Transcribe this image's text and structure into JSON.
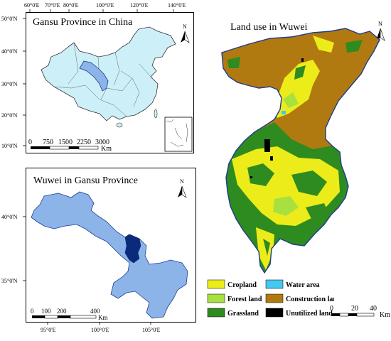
{
  "china_panel": {
    "title": "Gansu Province in China",
    "lon_ticks": [
      "60°0'E",
      "70°0'E",
      "80°0'E",
      "100°0'E",
      "120°0'E",
      "140°0'E"
    ],
    "lat_ticks": [
      "50°0'N",
      "40°0'N",
      "30°0'N",
      "20°0'N",
      "10°0'N"
    ],
    "scale_labels": [
      "0",
      "750",
      "1500",
      "2250",
      "3000"
    ],
    "scale_unit": "Km",
    "north_label": "N"
  },
  "gansu_panel": {
    "title": "Wuwei in Gansu Province",
    "lat_ticks": [
      "40°0'N",
      "35°0'N"
    ],
    "lon_ticks": [
      "95°0'E",
      "100°0'E",
      "105°0'E"
    ],
    "scale_labels": [
      "0",
      "100",
      "200",
      "400"
    ],
    "scale_unit": "Km",
    "north_label": "N"
  },
  "wuwei_panel": {
    "title": "Land use in Wuwei",
    "north_label": "N",
    "scale_labels": [
      "0",
      "20",
      "40"
    ],
    "scale_unit": "Km"
  },
  "legend": {
    "items": [
      {
        "label": "Cropland",
        "color": "#ecec1a"
      },
      {
        "label": "Water area",
        "color": "#44c8f0"
      },
      {
        "label": "Forest land",
        "color": "#a8e040"
      },
      {
        "label": "Construction land",
        "color": "#b07a10"
      },
      {
        "label": "Grassland",
        "color": "#2e8b1f"
      },
      {
        "label": "Unutilized land",
        "color": "#000000"
      }
    ]
  },
  "colors": {
    "china_fill": "#cdeff7",
    "gansu_highlight": "#8cb4e8",
    "gansu_fill": "#8cb4e8",
    "wuwei_highlight": "#0b2b7a",
    "construction": "#b07a10",
    "cropland": "#ecec1a",
    "grassland": "#2e8b1f",
    "border": "#1e3c8c"
  }
}
